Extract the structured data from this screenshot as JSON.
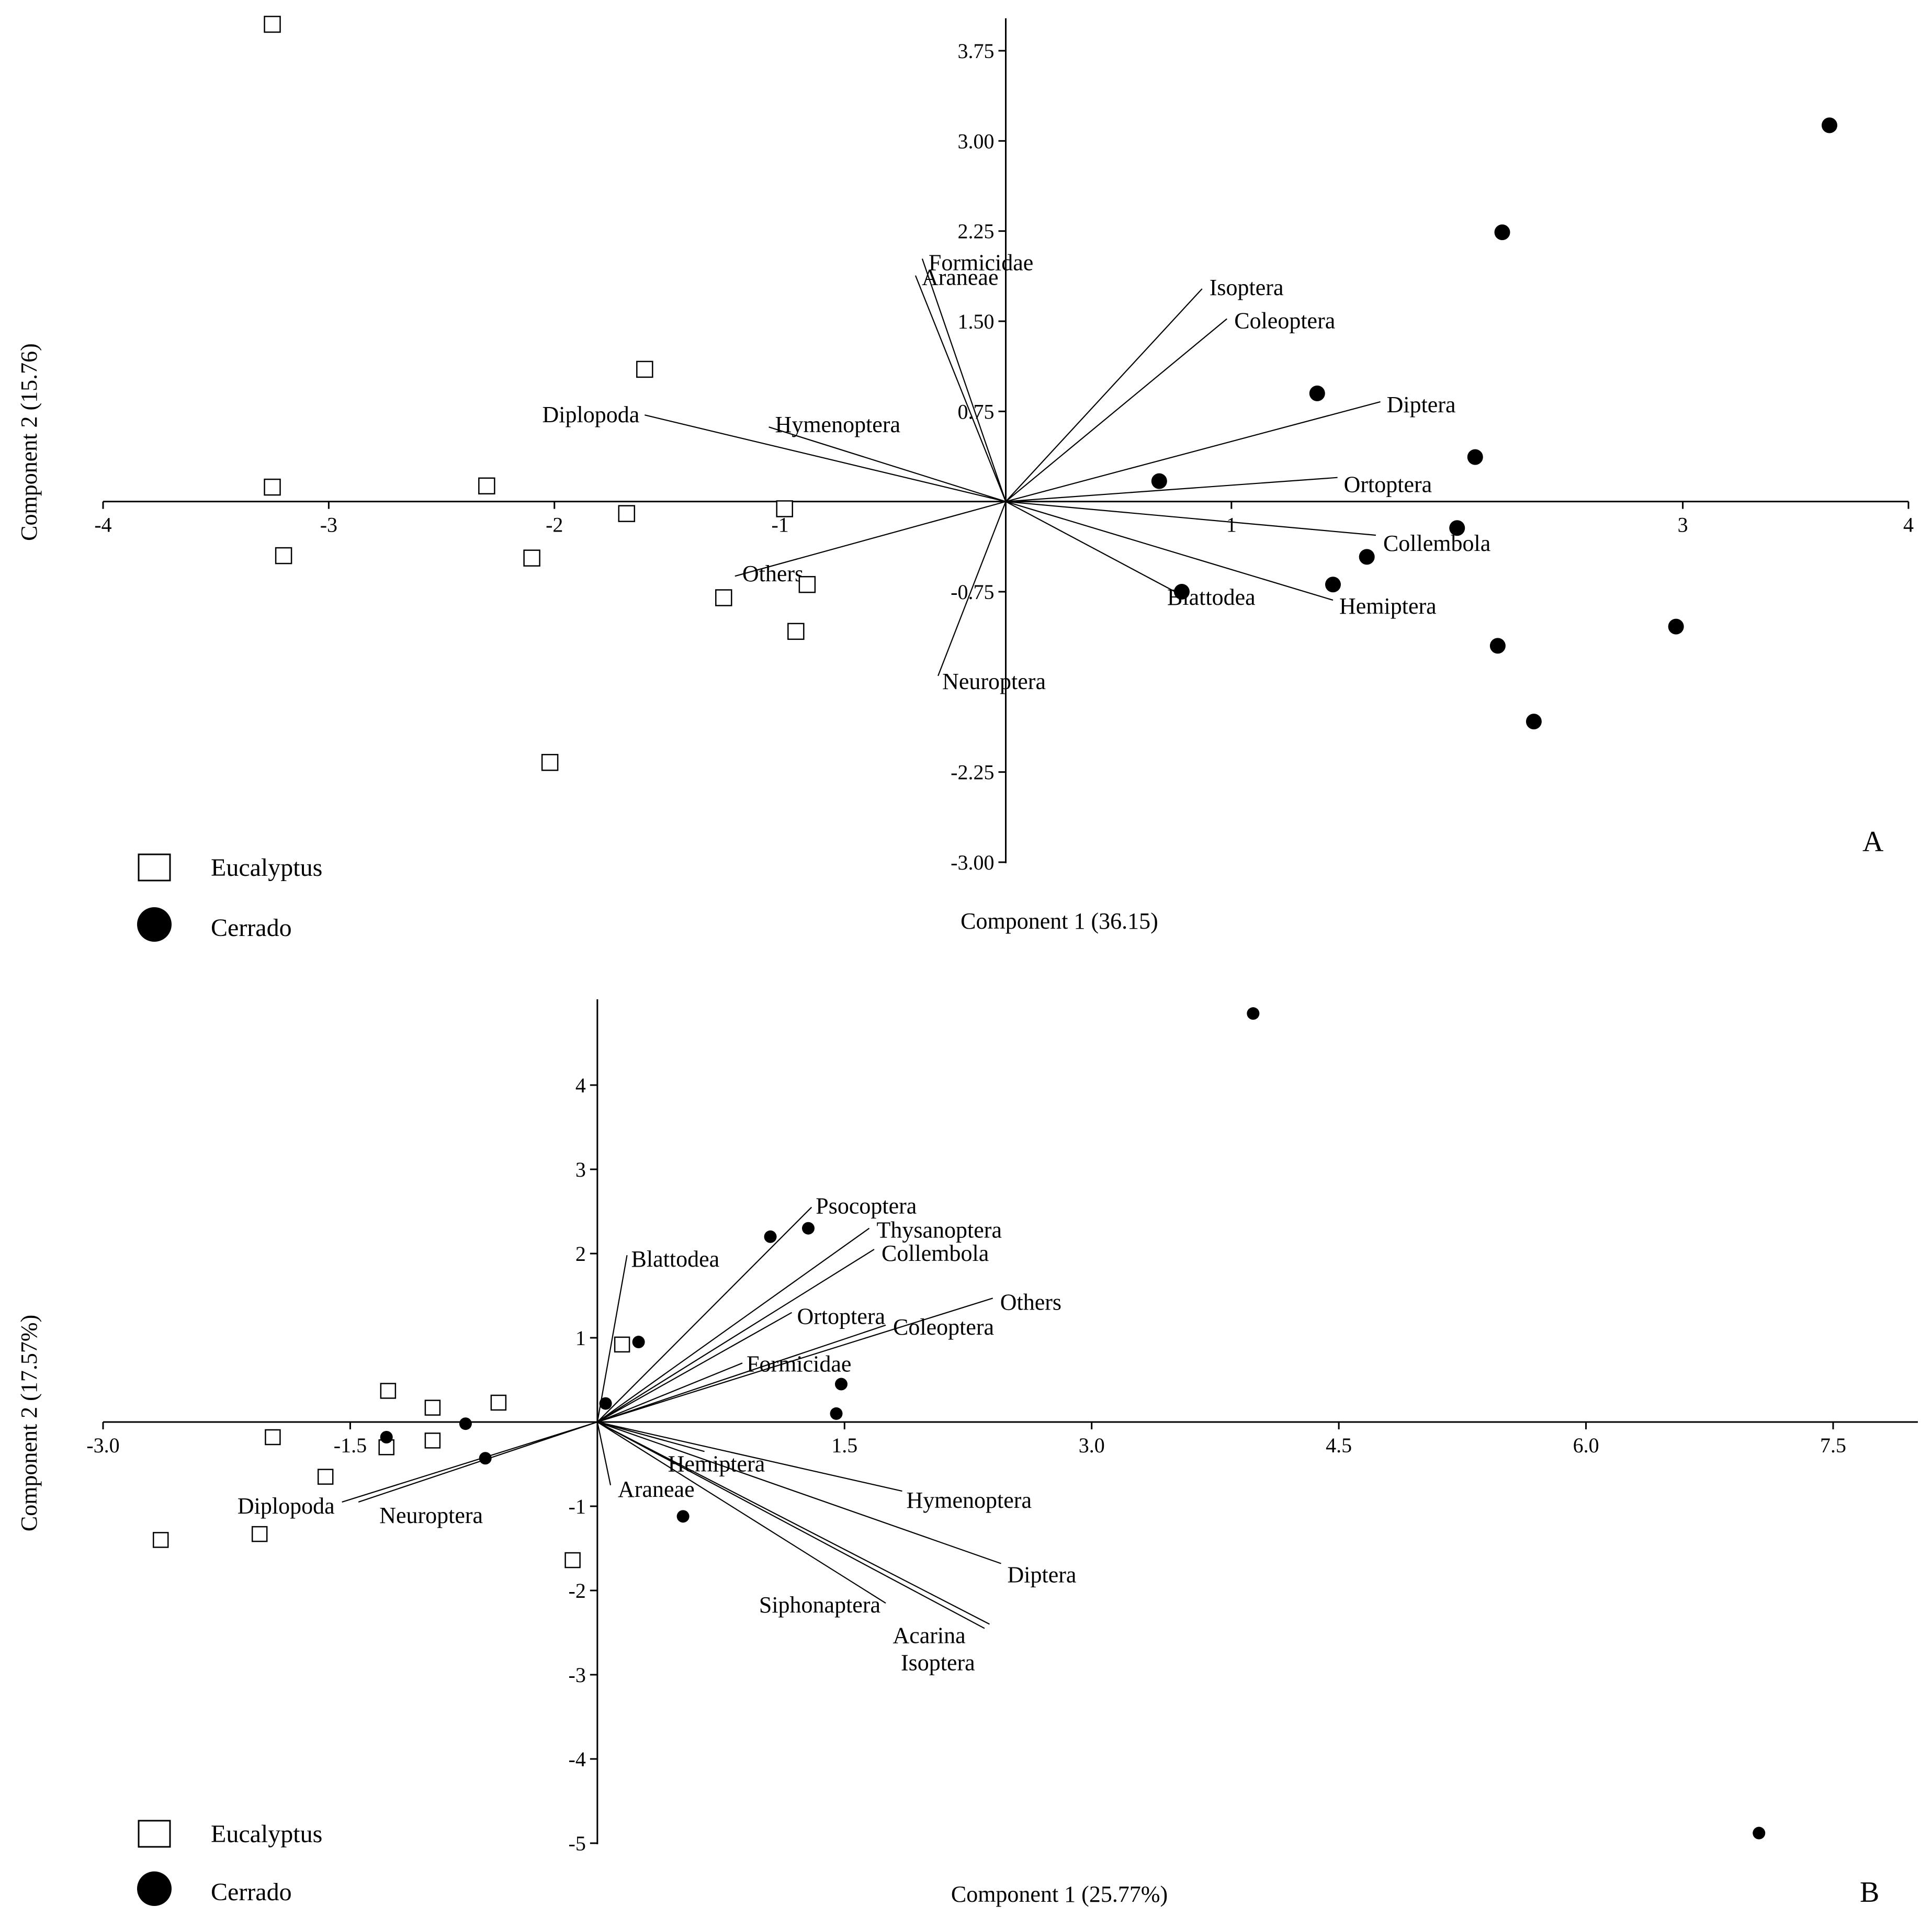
{
  "chart_data": [
    {
      "type": "scatter",
      "panel_label": "A",
      "xlabel": "Component 1 (36.15)",
      "ylabel": "Component 2 (15.76)",
      "xlim": [
        -4,
        4
      ],
      "ylim": [
        -3.0,
        4.0
      ],
      "x_ticks": [
        -4,
        -3,
        -2,
        -1,
        1,
        3,
        4
      ],
      "x_tick_labels": [
        "-4",
        "-3",
        "-2",
        "-1",
        "1",
        "3",
        "4"
      ],
      "y_ticks": [
        3.75,
        3.0,
        2.25,
        1.5,
        0.75,
        -0.75,
        -2.25,
        -3.0
      ],
      "y_tick_labels": [
        "3.75",
        "3.00",
        "2.25",
        "1.50",
        "0.75",
        "-0.75",
        "-2.25",
        "-3.00"
      ],
      "series": [
        {
          "name": "Eucalyptus",
          "marker": "open-square",
          "points": [
            [
              -3.25,
              3.97
            ],
            [
              -3.25,
              0.12
            ],
            [
              -3.2,
              -0.45
            ],
            [
              -2.3,
              0.13
            ],
            [
              -2.1,
              -0.47
            ],
            [
              -1.68,
              -0.1
            ],
            [
              -1.6,
              1.1
            ],
            [
              -1.25,
              -0.8
            ],
            [
              -0.98,
              -0.06
            ],
            [
              -0.88,
              -0.69
            ],
            [
              -0.93,
              -1.08
            ],
            [
              -2.02,
              -2.17
            ]
          ]
        },
        {
          "name": "Cerrado",
          "marker": "filled-circle",
          "points": [
            [
              3.65,
              3.13
            ],
            [
              2.2,
              2.24
            ],
            [
              1.38,
              0.9
            ],
            [
              2.08,
              0.37
            ],
            [
              0.68,
              0.17
            ],
            [
              2.0,
              -0.22
            ],
            [
              1.6,
              -0.46
            ],
            [
              1.45,
              -0.69
            ],
            [
              0.78,
              -0.75
            ],
            [
              2.97,
              -1.04
            ],
            [
              2.18,
              -1.2
            ],
            [
              2.34,
              -1.83
            ]
          ]
        }
      ],
      "vectors": [
        {
          "label": "Formicidae",
          "x": -0.37,
          "y": 2.02
        },
        {
          "label": "Araneae",
          "x": -0.4,
          "y": 1.88
        },
        {
          "label": "Isoptera",
          "x": 0.87,
          "y": 1.77
        },
        {
          "label": "Coleoptera",
          "x": 0.98,
          "y": 1.52
        },
        {
          "label": "Diptera",
          "x": 1.66,
          "y": 0.83
        },
        {
          "label": "Ortoptera",
          "x": 1.47,
          "y": 0.2
        },
        {
          "label": "Collembola",
          "x": 1.64,
          "y": -0.28
        },
        {
          "label": "Hemiptera",
          "x": 1.45,
          "y": -0.82
        },
        {
          "label": "Blattodea",
          "x": 0.75,
          "y": -0.75
        },
        {
          "label": "Diplopoda",
          "x": -1.6,
          "y": 0.72
        },
        {
          "label": "Hymenoptera",
          "x": -1.05,
          "y": 0.62
        },
        {
          "label": "Others",
          "x": -1.2,
          "y": -0.62
        },
        {
          "label": "Neuroptera",
          "x": -0.3,
          "y": -1.45
        }
      ],
      "legend": {
        "placement": "bottom-left",
        "items": [
          "Eucalyptus",
          "Cerrado"
        ]
      }
    },
    {
      "type": "scatter",
      "panel_label": "B",
      "xlabel": "Component 1 (25.77%)",
      "ylabel": "Component 2 (17.57%)",
      "xlim": [
        -3.0,
        8.0
      ],
      "ylim": [
        -5.0,
        5.0
      ],
      "x_ticks": [
        -3.0,
        -1.5,
        1.5,
        3.0,
        4.5,
        6.0,
        7.5
      ],
      "x_tick_labels": [
        "-3.0",
        "-1.5",
        "1.5",
        "3.0",
        "4.5",
        "6.0",
        "7.5"
      ],
      "y_ticks": [
        4,
        3,
        2,
        1,
        -1,
        -2,
        -3,
        -4,
        -5
      ],
      "y_tick_labels": [
        "4",
        "3",
        "2",
        "1",
        "-1",
        "-2",
        "-3",
        "-4",
        "-5"
      ],
      "series": [
        {
          "name": "Eucalyptus",
          "marker": "open-square",
          "points": [
            [
              0.15,
              0.92
            ],
            [
              -1.27,
              0.37
            ],
            [
              -1.0,
              0.17
            ],
            [
              -0.6,
              0.23
            ],
            [
              -1.97,
              -0.18
            ],
            [
              -1.0,
              -0.22
            ],
            [
              -1.28,
              -0.3
            ],
            [
              -1.65,
              -0.65
            ],
            [
              -2.65,
              -1.4
            ],
            [
              -2.05,
              -1.33
            ],
            [
              -0.15,
              -1.64
            ]
          ]
        },
        {
          "name": "Cerrado",
          "marker": "filled-circle",
          "points": [
            [
              3.98,
              4.85
            ],
            [
              1.28,
              2.3
            ],
            [
              1.05,
              2.2
            ],
            [
              0.25,
              0.95
            ],
            [
              0.05,
              0.22
            ],
            [
              1.48,
              0.45
            ],
            [
              1.45,
              0.1
            ],
            [
              -0.8,
              -0.02
            ],
            [
              -1.28,
              -0.18
            ],
            [
              -0.68,
              -0.43
            ],
            [
              0.52,
              -1.12
            ],
            [
              7.05,
              -4.88
            ]
          ]
        }
      ],
      "vectors": [
        {
          "label": "Psocoptera",
          "x": 1.3,
          "y": 2.55
        },
        {
          "label": "Thysanoptera",
          "x": 1.65,
          "y": 2.3
        },
        {
          "label": "Collembola",
          "x": 1.68,
          "y": 2.05
        },
        {
          "label": "Blattodea",
          "x": 0.18,
          "y": 1.98
        },
        {
          "label": "Ortoptera",
          "x": 1.18,
          "y": 1.3
        },
        {
          "label": "Others",
          "x": 2.4,
          "y": 1.47
        },
        {
          "label": "Coleoptera",
          "x": 1.75,
          "y": 1.15
        },
        {
          "label": "Formicidae",
          "x": 0.88,
          "y": 0.7
        },
        {
          "label": "Hemiptera",
          "x": 0.65,
          "y": -0.35
        },
        {
          "label": "Hymenoptera",
          "x": 1.85,
          "y": -0.82
        },
        {
          "label": "Diptera",
          "x": 2.45,
          "y": -1.68
        },
        {
          "label": "Siphonaptera",
          "x": 1.75,
          "y": -2.15
        },
        {
          "label": "Acarina",
          "x": 2.38,
          "y": -2.4
        },
        {
          "label": "Isoptera",
          "x": 2.35,
          "y": -2.45
        },
        {
          "label": "Araneae",
          "x": 0.08,
          "y": -0.75
        },
        {
          "label": "Diplopoda",
          "x": -1.55,
          "y": -0.95
        },
        {
          "label": "Neuroptera",
          "x": -1.45,
          "y": -0.95
        }
      ],
      "legend": {
        "placement": "bottom-left",
        "items": [
          "Eucalyptus",
          "Cerrado"
        ]
      }
    }
  ]
}
